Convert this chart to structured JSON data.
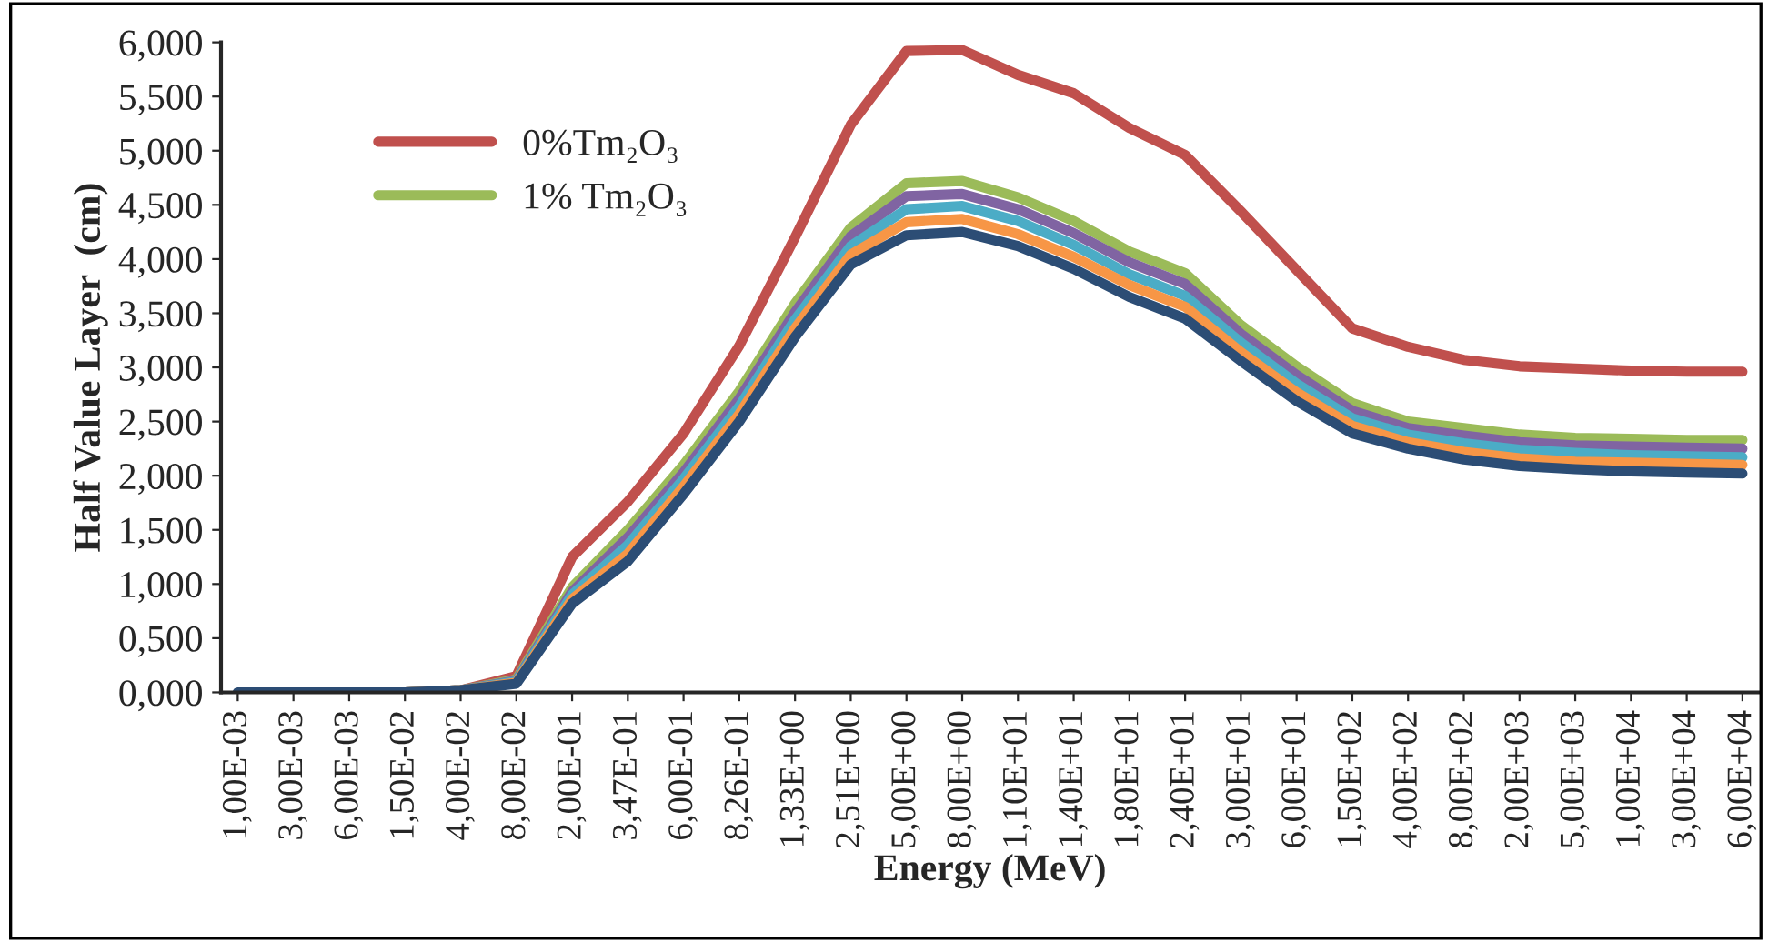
{
  "chart_data": {
    "type": "line",
    "xlabel": "Energy (MeV)",
    "ylabel": "Half Value Layer  (cm)",
    "categories": [
      "1,00E-03",
      "3,00E-03",
      "6,00E-03",
      "1,50E-02",
      "4,00E-02",
      "8,00E-02",
      "2,00E-01",
      "3,47E-01",
      "6,00E-01",
      "8,26E-01",
      "1,33E+00",
      "2,51E+00",
      "5,00E+00",
      "8,00E+00",
      "1,10E+01",
      "1,40E+01",
      "1,80E+01",
      "2,40E+01",
      "3,00E+01",
      "6,00E+01",
      "1,50E+02",
      "4,00E+02",
      "8,00E+02",
      "2,00E+03",
      "5,00E+03",
      "1,00E+04",
      "3,00E+04",
      "6,00E+04"
    ],
    "series": [
      {
        "name": "0%Tm₂O₃",
        "color": "#c0504d",
        "values": [
          null,
          null,
          null,
          0,
          0.02,
          0.15,
          1.25,
          1.76,
          2.39,
          3.2,
          4.2,
          5.24,
          5.92,
          5.93,
          5.7,
          5.53,
          5.21,
          4.96,
          4.44,
          3.9,
          3.36,
          3.19,
          3.07,
          3.01,
          2.99,
          2.97,
          2.96,
          2.96
        ]
      },
      {
        "name": "1% Tm₂O₃",
        "color": "#9bbb59",
        "values": [
          null,
          null,
          null,
          0,
          0.02,
          0.12,
          0.97,
          1.5,
          2.1,
          2.78,
          3.59,
          4.29,
          4.7,
          4.72,
          4.57,
          4.35,
          4.07,
          3.87,
          3.39,
          3.01,
          2.67,
          2.5,
          2.44,
          2.38,
          2.35,
          2.34,
          2.33,
          2.33
        ]
      },
      {
        "color": "#8064a2",
        "values": [
          null,
          null,
          null,
          0,
          0.02,
          0.11,
          0.93,
          1.43,
          2.03,
          2.71,
          3.51,
          4.21,
          4.58,
          4.6,
          4.46,
          4.24,
          3.97,
          3.77,
          3.31,
          2.93,
          2.6,
          2.44,
          2.37,
          2.31,
          2.28,
          2.27,
          2.26,
          2.25
        ]
      },
      {
        "color": "#4bacc6",
        "values": [
          null,
          null,
          null,
          0,
          0.02,
          0.1,
          0.9,
          1.36,
          1.97,
          2.64,
          3.44,
          4.12,
          4.46,
          4.49,
          4.35,
          4.13,
          3.86,
          3.66,
          3.23,
          2.85,
          2.53,
          2.38,
          2.3,
          2.24,
          2.21,
          2.19,
          2.18,
          2.17
        ]
      },
      {
        "color": "#f79646",
        "values": [
          null,
          null,
          null,
          0,
          0.02,
          0.09,
          0.86,
          1.28,
          1.9,
          2.57,
          3.36,
          4.04,
          4.34,
          4.37,
          4.23,
          4.02,
          3.76,
          3.56,
          3.14,
          2.77,
          2.46,
          2.31,
          2.22,
          2.16,
          2.13,
          2.12,
          2.11,
          2.1
        ]
      },
      {
        "color": "#2c4d75",
        "values": [
          0,
          0,
          0,
          0,
          0.02,
          0.08,
          0.82,
          1.21,
          1.83,
          2.5,
          3.28,
          3.95,
          4.22,
          4.25,
          4.12,
          3.91,
          3.65,
          3.45,
          3.06,
          2.69,
          2.39,
          2.25,
          2.15,
          2.09,
          2.06,
          2.04,
          2.03,
          2.02
        ]
      }
    ],
    "ylim": [
      0,
      6
    ],
    "yticks": [
      {
        "value": 0,
        "label": "0,000"
      },
      {
        "value": 0.5,
        "label": "0,500"
      },
      {
        "value": 1,
        "label": "1,000"
      },
      {
        "value": 1.5,
        "label": "1,500"
      },
      {
        "value": 2,
        "label": "2,000"
      },
      {
        "value": 2.5,
        "label": "2,500"
      },
      {
        "value": 3,
        "label": "3,000"
      },
      {
        "value": 3.5,
        "label": "3,500"
      },
      {
        "value": 4,
        "label": "4,000"
      },
      {
        "value": 4.5,
        "label": "4,500"
      },
      {
        "value": 5,
        "label": "5,000"
      },
      {
        "value": 5.5,
        "label": "5,500"
      },
      {
        "value": 6,
        "label": "6,000"
      }
    ],
    "legend": "top left",
    "grid": false,
    "line_style": "solid",
    "marker": "none"
  }
}
